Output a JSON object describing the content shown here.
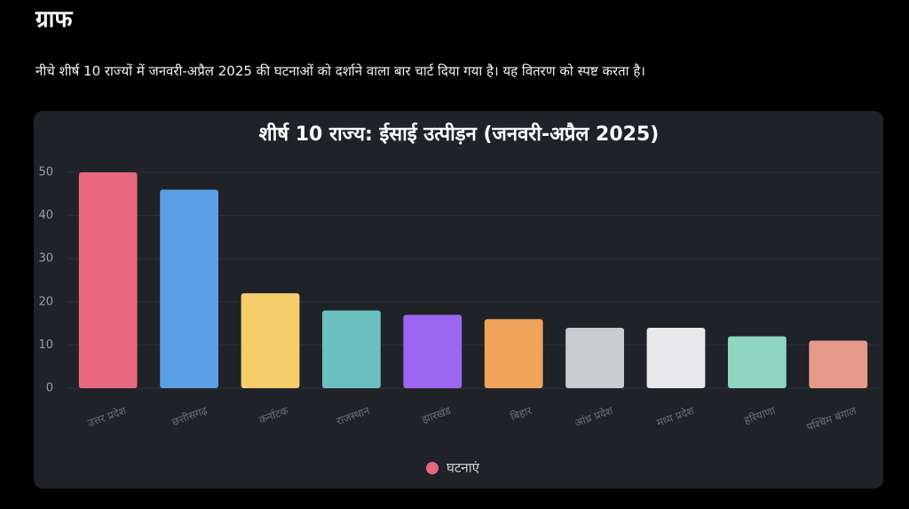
{
  "heading": "ग्राफ",
  "description": "नीचे शीर्ष 10 राज्यों में जनवरी-अप्रैल 2025 की घटनाओं को दर्शाने वाला बार चार्ट दिया गया है। यह वितरण को स्पष्ट करता है।",
  "chart_data": {
    "type": "bar",
    "title": "शीर्ष 10 राज्य: ईसाई उत्पीड़न (जनवरी-अप्रैल 2025)",
    "categories": [
      "उत्तर प्रदेश",
      "छत्तीसगढ़",
      "कर्नाटक",
      "राजस्थान",
      "झारखंड",
      "बिहार",
      "आंध्र प्रदेश",
      "मध्य प्रदेश",
      "हरियाणा",
      "पश्चिम बंगाल"
    ],
    "series": [
      {
        "name": "घटनाएं",
        "color": "#e8677f",
        "colors": [
          "#e8677f",
          "#5a9fe6",
          "#f5cd6a",
          "#6bbfbf",
          "#9b66f2",
          "#f0a35a",
          "#c9cbcf",
          "#e8e8ea",
          "#8fd6c0",
          "#e69a8a"
        ],
        "values": [
          50,
          46,
          22,
          18,
          17,
          16,
          14,
          14,
          12,
          11
        ]
      }
    ],
    "ylim": [
      0,
      50
    ],
    "yticks": [
      0,
      10,
      20,
      30,
      40,
      50
    ],
    "grid": true,
    "legend": "bottom"
  }
}
